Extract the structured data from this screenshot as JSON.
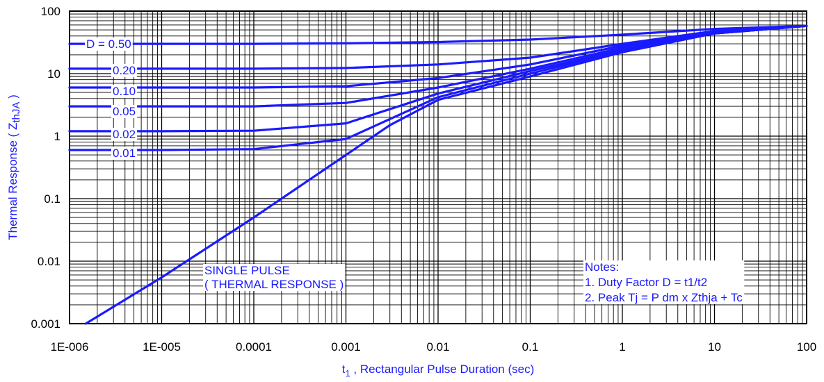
{
  "colors": {
    "curve": "#1a1aff",
    "label_text": "#1a1aff",
    "grid": "#000000",
    "background": "#ffffff"
  },
  "chart_data": {
    "type": "line",
    "title": "",
    "xlabel_main": "t",
    "xlabel_sub": "1",
    "xlabel_rest": " , Rectangular Pulse Duration (sec)",
    "ylabel_main": "Thermal Response ( Z",
    "ylabel_sub": "thJA",
    "ylabel_end": " )",
    "x_scale": "log",
    "y_scale": "log",
    "xlim": [
      1e-06,
      100
    ],
    "ylim": [
      0.001,
      100
    ],
    "grid": true,
    "x_ticks": [
      "1E-006",
      "1E-005",
      "0.0001",
      "0.001",
      "0.01",
      "0.1",
      "1",
      "10",
      "100"
    ],
    "y_ticks": [
      "100",
      "10",
      "1",
      "0.1",
      "0.01",
      "0.001"
    ],
    "series": [
      {
        "name": "D = 0.50",
        "x": [
          1e-06,
          1e-05,
          0.0001,
          0.001,
          0.01,
          0.1,
          1,
          10,
          100
        ],
        "y": [
          30,
          30,
          30,
          30.5,
          32,
          35,
          42,
          52,
          58
        ]
      },
      {
        "name": "0.20",
        "x": [
          1e-06,
          1e-05,
          0.0001,
          0.001,
          0.01,
          0.1,
          1,
          10,
          100
        ],
        "y": [
          12,
          12,
          12,
          12.3,
          14,
          18,
          30,
          48,
          58
        ]
      },
      {
        "name": "0.10",
        "x": [
          1e-06,
          1e-05,
          0.0001,
          0.001,
          0.01,
          0.1,
          1,
          10,
          100
        ],
        "y": [
          6,
          6,
          6,
          6.3,
          8.5,
          14,
          28,
          46,
          58
        ]
      },
      {
        "name": "0.05",
        "x": [
          1e-06,
          1e-05,
          0.0001,
          0.001,
          0.01,
          0.1,
          1,
          10,
          100
        ],
        "y": [
          3,
          3,
          3,
          3.4,
          6,
          12,
          26,
          45,
          58
        ]
      },
      {
        "name": "0.02",
        "x": [
          1e-06,
          1e-05,
          0.0001,
          0.001,
          0.01,
          0.1,
          1,
          10,
          100
        ],
        "y": [
          1.2,
          1.2,
          1.22,
          1.6,
          4.8,
          11,
          24,
          44,
          58
        ]
      },
      {
        "name": "0.01",
        "x": [
          1e-06,
          1e-05,
          0.0001,
          0.001,
          0.01,
          0.1,
          1,
          10,
          100
        ],
        "y": [
          0.6,
          0.6,
          0.62,
          0.9,
          4.2,
          10,
          23,
          44,
          58
        ]
      },
      {
        "name": "SINGLE PULSE",
        "x": [
          1.5e-06,
          1e-05,
          0.0001,
          0.001,
          0.003,
          0.01,
          0.1,
          1,
          10,
          100
        ],
        "y": [
          0.001,
          0.0055,
          0.05,
          0.5,
          1.5,
          3.8,
          9,
          22,
          44,
          58
        ]
      }
    ],
    "annotations": {
      "single_pulse": [
        "SINGLE PULSE",
        "( THERMAL RESPONSE )"
      ],
      "notes": [
        "Notes:",
        "1. Duty Factor D = t1/t2",
        "2. Peak Tj = P dm x Zthja + Tc"
      ]
    }
  }
}
